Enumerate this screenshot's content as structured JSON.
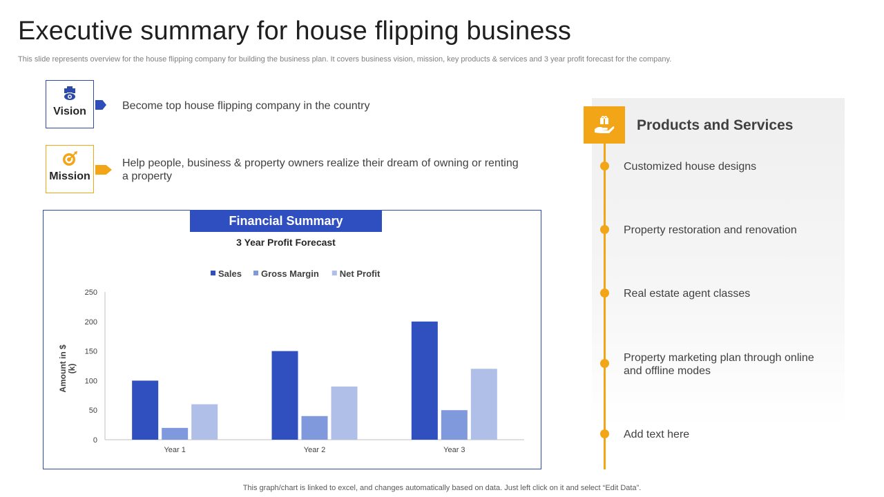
{
  "header": {
    "title": "Executive summary for house flipping business",
    "subtitle": "This slide represents overview for the house flipping company for building the business plan. It covers business vision, mission, key products & services and 3 year profit forecast for the company."
  },
  "vision": {
    "label": "Vision",
    "text": "Become top house flipping company in the country",
    "icon": "vision-icon",
    "color": "#2e4aa8"
  },
  "mission": {
    "label": "Mission",
    "text": "Help people, business & property owners realize their dream of owning or renting a property",
    "icon": "target-icon",
    "color": "#f2a516"
  },
  "financial": {
    "header": "Financial Summary"
  },
  "chart_data": {
    "type": "bar",
    "title": "3 Year Profit Forecast",
    "categories": [
      "Year 1",
      "Year 2",
      "Year 3"
    ],
    "series": [
      {
        "name": "Sales",
        "values": [
          100,
          150,
          200
        ],
        "color": "#3050c0"
      },
      {
        "name": "Gross Margin",
        "values": [
          20,
          40,
          50
        ],
        "color": "#8098dc"
      },
      {
        "name": "Net Profit",
        "values": [
          60,
          90,
          120
        ],
        "color": "#b0bfe8"
      }
    ],
    "xlabel": "",
    "ylabel": "Amount in $ (k)",
    "ylabel_lines": [
      "Amount in $",
      "(k)"
    ],
    "ylim": [
      0,
      250
    ],
    "yticks": [
      0,
      50,
      100,
      150,
      200,
      250
    ],
    "grid": false,
    "legend_position": "top"
  },
  "products": {
    "title": "Products and Services",
    "icon": "hand-gift-icon",
    "accent": "#f2a516",
    "items": [
      {
        "label": "Customized house designs"
      },
      {
        "label": "Property restoration and renovation"
      },
      {
        "label": "Real estate agent classes"
      },
      {
        "label": "Property marketing plan through online and offline modes"
      },
      {
        "label": "Add text here"
      }
    ]
  },
  "footer": {
    "note": "This graph/chart is linked to excel, and changes automatically based on data. Just left click on it and select “Edit Data”."
  }
}
